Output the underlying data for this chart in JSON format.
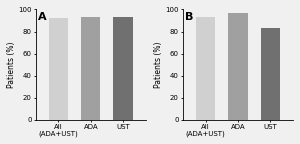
{
  "panel_A": {
    "label": "A",
    "categories": [
      "All\n(ADA+UST)",
      "ADA",
      "UST"
    ],
    "values": [
      92.5,
      93.5,
      93.0
    ],
    "bar_colors": [
      "#d0d0d0",
      "#a0a0a0",
      "#707070"
    ]
  },
  "panel_B": {
    "label": "B",
    "categories": [
      "All\n(ADA+UST)",
      "ADA",
      "UST"
    ],
    "values": [
      93.0,
      97.0,
      83.0
    ],
    "bar_colors": [
      "#d0d0d0",
      "#a0a0a0",
      "#707070"
    ]
  },
  "ylabel": "Patients (%)",
  "ylim": [
    0,
    100
  ],
  "yticks": [
    0,
    20,
    40,
    60,
    80,
    100
  ],
  "background_color": "#f0f0f0",
  "bar_width": 0.6,
  "tick_fontsize": 5.0,
  "label_fontsize": 5.5,
  "panel_label_fontsize": 8.0
}
